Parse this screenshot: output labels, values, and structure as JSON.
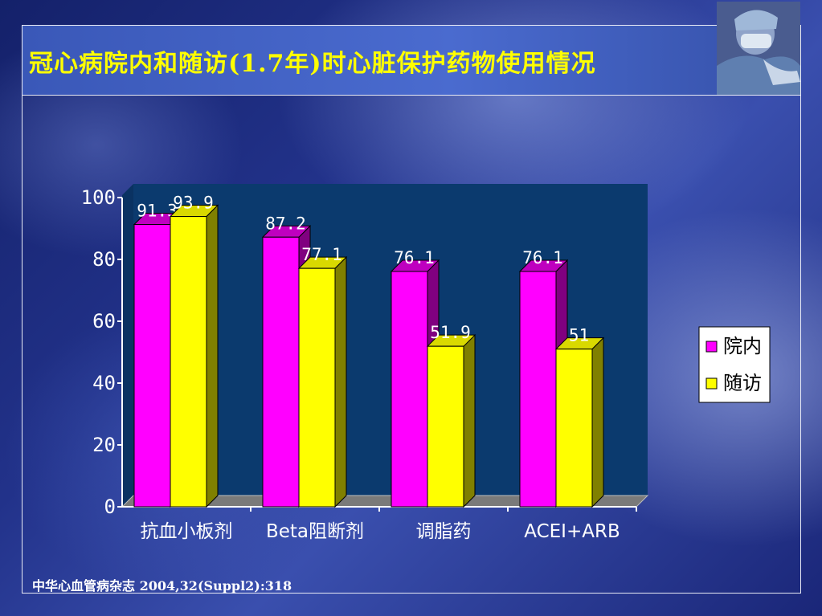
{
  "title": "冠心病院内和随访(1.7年)时心脏保护药物使用情况",
  "source": "中华心血管病杂志  2004,32(Suppl2):318",
  "colors": {
    "series_in_hospital": "#ff00ff",
    "series_followup": "#ffff00",
    "plot_background": "#0b3a6e",
    "title_text": "#ffff00"
  },
  "chart_data": {
    "type": "bar",
    "categories": [
      "抗血小板剂",
      "Beta阻断剂",
      "调脂药",
      "ACEI+ARB"
    ],
    "series": [
      {
        "name": "院内",
        "values": [
          91.3,
          87.2,
          76.1,
          76.1
        ],
        "labels": [
          "91.3",
          "87.2",
          "76.1",
          "76.1"
        ]
      },
      {
        "name": "随访",
        "values": [
          93.9,
          77.1,
          51.9,
          51
        ],
        "labels": [
          "93.9",
          "77.1",
          "51.9",
          "51"
        ]
      }
    ],
    "ylim": [
      0,
      100
    ],
    "yticks": [
      "0",
      "20",
      "40",
      "60",
      "80",
      "100"
    ],
    "legend_position": "right",
    "style": "3d"
  }
}
